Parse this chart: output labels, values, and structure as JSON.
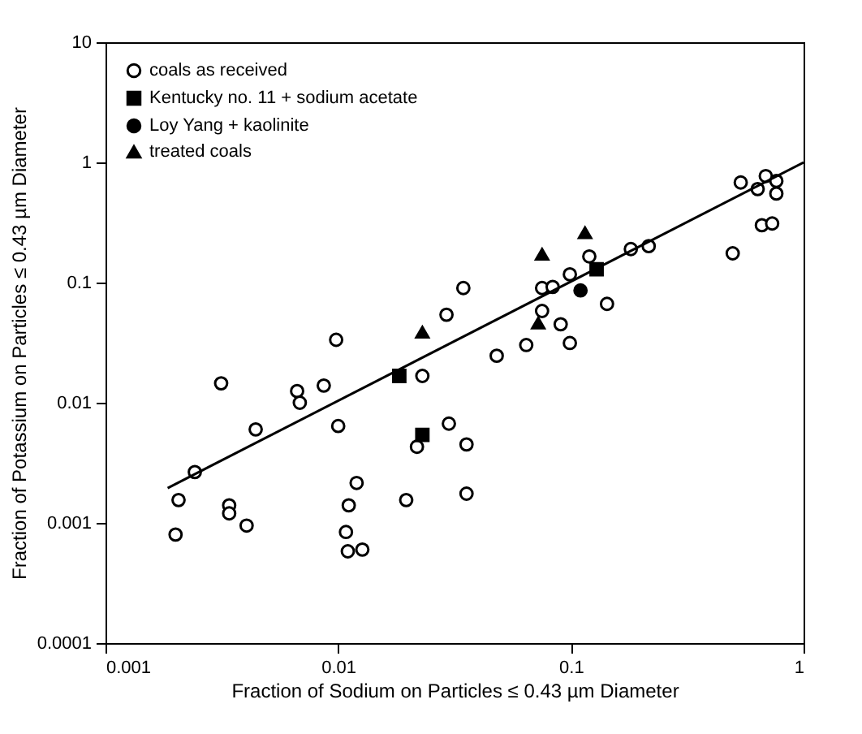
{
  "chart_data": {
    "type": "scatter",
    "xlabel": "Fraction of Sodium on Particles ≤ 0.43 µm Diameter",
    "ylabel": "Fraction of Potassium on Particles ≤ 0.43 µm Diameter",
    "log": "xy",
    "xlim": [
      0.001,
      1
    ],
    "ylim": [
      0.0001,
      10
    ],
    "xticks": [
      0.001,
      0.01,
      0.1,
      1
    ],
    "yticks": [
      0.0001,
      0.001,
      0.01,
      0.1,
      1,
      10
    ],
    "grid": false,
    "legend": "top left",
    "series": [
      {
        "name": "coals as received",
        "color": "#ffffff",
        "marker": "circle",
        "x": [
          0.002,
          0.00206,
          0.00242,
          0.00314,
          0.0034,
          0.0034,
          0.00404,
          0.00442,
          0.00666,
          0.00684,
          0.00867,
          0.0098,
          0.01,
          0.0108,
          0.011,
          0.0127,
          0.0111,
          0.012,
          0.0196,
          0.0218,
          0.023,
          0.0292,
          0.0299,
          0.0345,
          0.0356,
          0.0356,
          0.048,
          0.0643,
          0.0752,
          0.0835,
          0.0752,
          0.0904,
          0.099,
          0.099,
          0.12,
          0.143,
          0.181,
          0.216,
          0.496,
          0.537,
          0.662,
          0.733,
          0.635,
          0.688,
          0.764,
          0.764
        ],
        "values": [
          0.0008,
          0.00155,
          0.00265,
          0.0145,
          0.0014,
          0.0012,
          0.00095,
          0.006,
          0.0125,
          0.01,
          0.0139,
          0.0334,
          0.0064,
          0.00084,
          0.00058,
          0.0006,
          0.0014,
          0.00215,
          0.00155,
          0.0043,
          0.0167,
          0.054,
          0.0067,
          0.09,
          0.0045,
          0.00175,
          0.0246,
          0.0302,
          0.09,
          0.092,
          0.058,
          0.045,
          0.0314,
          0.117,
          0.165,
          0.0665,
          0.19,
          0.201,
          0.175,
          0.68,
          0.3,
          0.31,
          0.6,
          0.77,
          0.7,
          0.55
        ]
      },
      {
        "name": "Kentucky  no. 11 + sodium acetate",
        "color": "#000000",
        "marker": "square",
        "x": [
          0.0183,
          0.023,
          0.129
        ],
        "values": [
          0.0167,
          0.0054,
          0.129
        ]
      },
      {
        "name": "Loy Yang + kaolinite",
        "color": "#000000",
        "marker": "circle",
        "x": [
          0.11
        ],
        "values": [
          0.086
        ]
      },
      {
        "name": "treated coals",
        "color": "#000000",
        "marker": "triangle",
        "x": [
          0.023,
          0.0752,
          0.115,
          0.0724
        ],
        "values": [
          0.0386,
          0.172,
          0.26,
          0.046
        ]
      },
      {
        "type": "line",
        "color": "#000000",
        "marker": "none",
        "line_style": "solid",
        "x": [
          0.00185,
          1.0
        ],
        "values": [
          0.00195,
          1.0
        ]
      }
    ]
  }
}
